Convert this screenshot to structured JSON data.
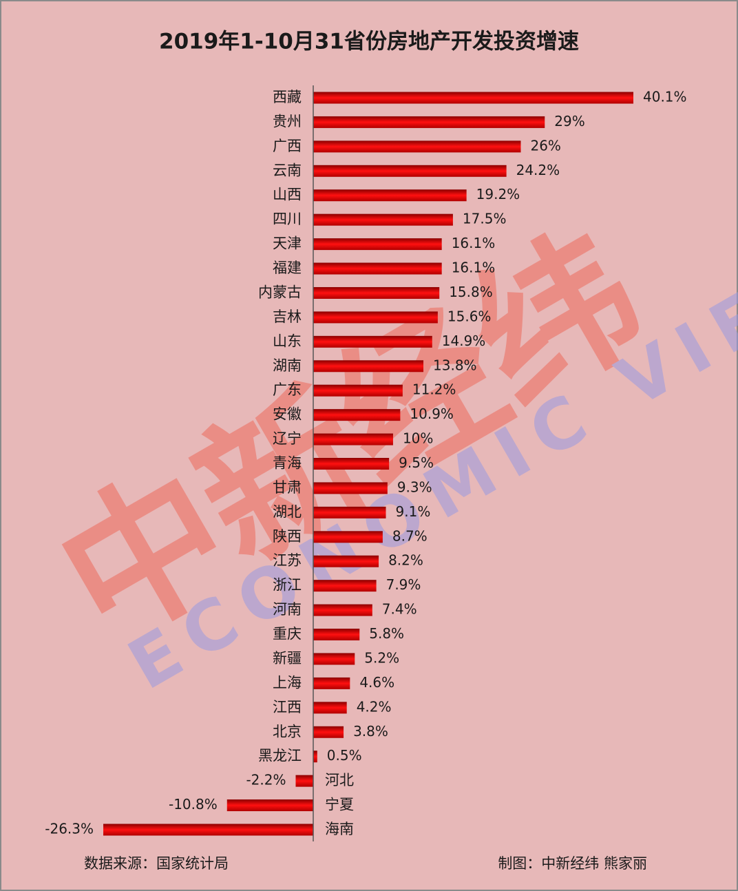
{
  "chart_data": {
    "type": "barh",
    "title": "2019年1-10月31省份房地产开发投资增速",
    "categories": [
      "西藏",
      "贵州",
      "广西",
      "云南",
      "山西",
      "四川",
      "天津",
      "福建",
      "内蒙古",
      "吉林",
      "山东",
      "湖南",
      "广东",
      "安徽",
      "辽宁",
      "青海",
      "甘肃",
      "湖北",
      "陕西",
      "江苏",
      "浙江",
      "河南",
      "重庆",
      "新疆",
      "上海",
      "江西",
      "北京",
      "黑龙江",
      "河北",
      "宁夏",
      "海南"
    ],
    "values": [
      40.1,
      29,
      26,
      24.2,
      19.2,
      17.5,
      16.1,
      16.1,
      15.8,
      15.6,
      14.9,
      13.8,
      11.2,
      10.9,
      10,
      9.5,
      9.3,
      9.1,
      8.7,
      8.2,
      7.9,
      7.4,
      5.8,
      5.2,
      4.6,
      4.2,
      3.8,
      0.5,
      -2.2,
      -10.8,
      -26.3
    ],
    "value_labels": [
      "40.1%",
      "29%",
      "26%",
      "24.2%",
      "19.2%",
      "17.5%",
      "16.1%",
      "16.1%",
      "15.8%",
      "15.6%",
      "14.9%",
      "13.8%",
      "11.2%",
      "10.9%",
      "10%",
      "9.5%",
      "9.3%",
      "9.1%",
      "8.7%",
      "8.2%",
      "7.9%",
      "7.4%",
      "5.8%",
      "5.2%",
      "4.6%",
      "4.2%",
      "3.8%",
      "0.5%",
      "-2.2%",
      "-10.8%",
      "-26.3%"
    ],
    "color": "#e00000",
    "source": "数据来源：国家统计局",
    "credit": "制图：中新经纬 熊家丽",
    "watermark": {
      "cn": "中新经纬",
      "en": "ECONOMIC VIEW"
    }
  }
}
